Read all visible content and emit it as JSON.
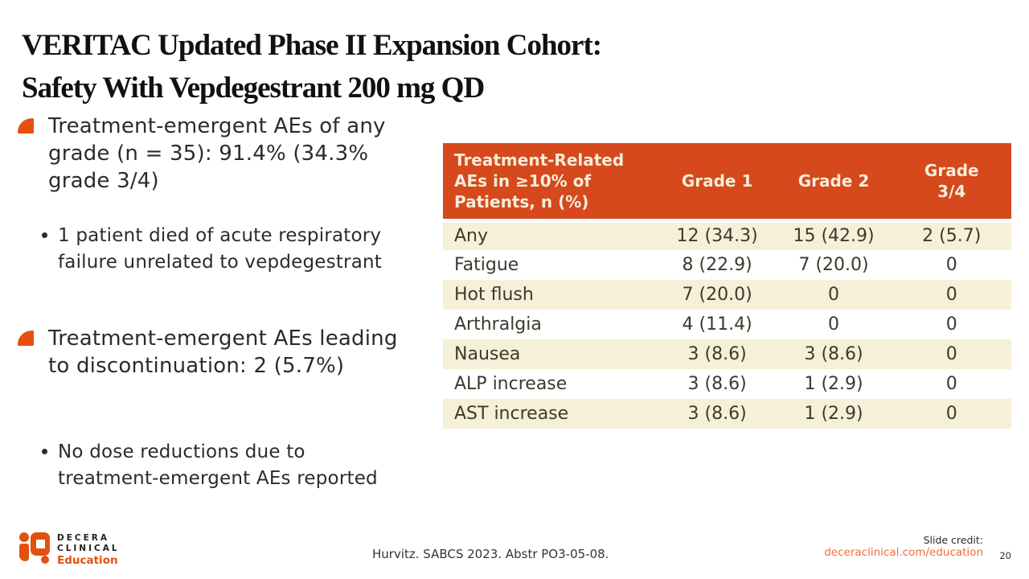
{
  "slide": {
    "title_line1": "VERITAC Updated Phase II Expansion Cohort:",
    "title_line2": "Safety With Vepdegestrant 200 mg QD"
  },
  "content": {
    "bullets": [
      {
        "text": "Treatment-emergent AEs of any grade (n = 35): 91.4% (34.3% grade 3/4)",
        "sub": "1 patient died of acute respiratory failure unrelated to vepdegestrant"
      },
      {
        "text": "Treatment-emergent AEs leading to discontinuation: 2 (5.7%)",
        "sub": "No dose reductions due to treatment-emergent AEs reported"
      }
    ]
  },
  "table": {
    "headers": [
      "Treatment-Related AEs in ≥10% of Patients, n (%)",
      "Grade 1",
      "Grade 2",
      "Grade 3/4"
    ],
    "rows": [
      [
        "Any",
        "12 (34.3)",
        "15 (42.9)",
        "2 (5.7)"
      ],
      [
        "Fatigue",
        "8 (22.9)",
        "7 (20.0)",
        "0"
      ],
      [
        "Hot flush",
        "7 (20.0)",
        "0",
        "0"
      ],
      [
        "Arthralgia",
        "4 (11.4)",
        "0",
        "0"
      ],
      [
        "Nausea",
        "3 (8.6)",
        "3 (8.6)",
        "0"
      ],
      [
        "ALP increase",
        "3 (8.6)",
        "1 (2.9)",
        "0"
      ],
      [
        "AST increase",
        "3 (8.6)",
        "1 (2.9)",
        "0"
      ]
    ]
  },
  "footer": {
    "logo_line1": "DECERA",
    "logo_line2": "CLINICAL",
    "logo_line3": "Education",
    "citation": "Hurvitz. SABCS 2023. Abstr PO3-05-08.",
    "credit_label": "Slide credit:",
    "credit_link": "deceraclinical.com/education",
    "page_number": "20"
  },
  "colors": {
    "accent_orange": "#E5500F",
    "table_header_bg": "#D5491D",
    "table_header_text": "#F6EDDA",
    "table_row_cream": "#F6F0D8",
    "body_text": "#2B2B2B",
    "link_orange": "#ED6B3F"
  }
}
